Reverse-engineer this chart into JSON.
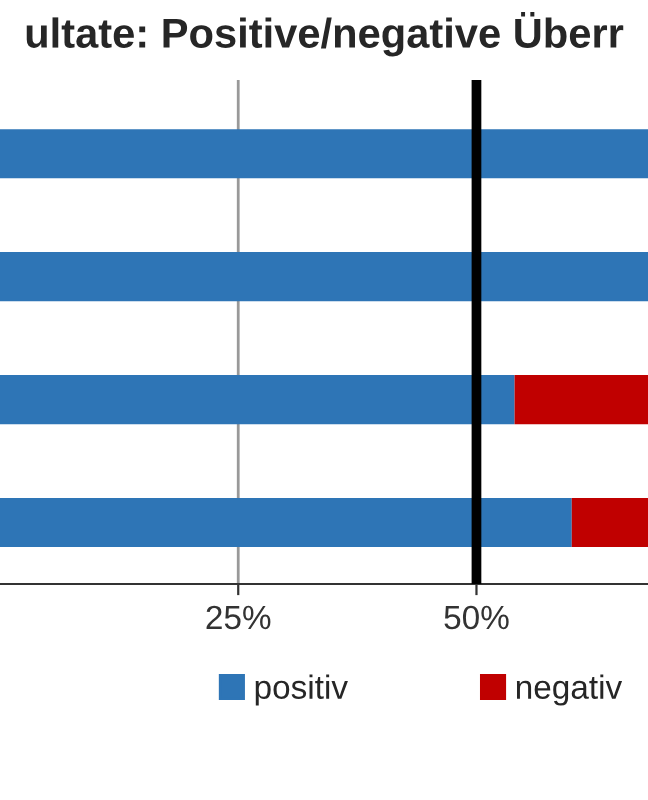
{
  "chart_data": {
    "type": "bar",
    "orientation": "horizontal",
    "stacked": true,
    "title": "ultate: Positive/negative Überr",
    "categories": [
      null,
      null,
      null,
      null
    ],
    "series": [
      {
        "name": "positiv",
        "color": "#2e75b6",
        "values": [
          68,
          68,
          54,
          60
        ]
      },
      {
        "name": "negativ",
        "color": "#c00000",
        "values": [
          null,
          null,
          14,
          8
        ]
      }
    ],
    "xlim": [
      0,
      68
    ],
    "xticks": [
      {
        "value": 25,
        "label": "25%"
      },
      {
        "value": 50,
        "label": "50%"
      }
    ],
    "ref_lines": [
      {
        "axis": "x",
        "value": 25,
        "color": "#999999",
        "line_style": "solid"
      },
      {
        "axis": "x",
        "value": 50,
        "color": "#000000"
      }
    ],
    "legend": "bottom"
  }
}
